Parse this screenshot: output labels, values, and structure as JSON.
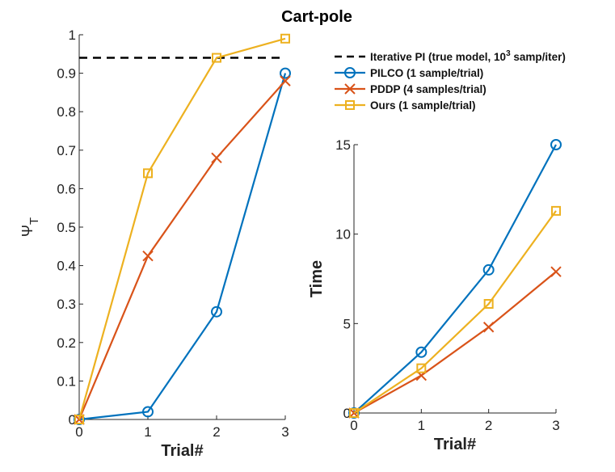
{
  "figure": {
    "title": "Cart-pole"
  },
  "chart_data": [
    {
      "type": "line",
      "xlabel": "Trial#",
      "ylabel": "Ψ",
      "ylabel_sub": "T",
      "x": [
        0,
        1,
        2,
        3
      ],
      "xlim": [
        0,
        3
      ],
      "ylim": [
        0,
        1
      ],
      "xticks": [
        "0",
        "1",
        "2",
        "3"
      ],
      "yticks": [
        "0",
        "0.1",
        "0.2",
        "0.3",
        "0.4",
        "0.5",
        "0.6",
        "0.7",
        "0.8",
        "0.9",
        "1"
      ],
      "reference_line": {
        "name": "Iterative PI (true model, 10",
        "name_sup": "3",
        "name_tail": " samp/iter)",
        "value": 0.94,
        "style": "dashed",
        "color": "#000000"
      },
      "series": [
        {
          "name": "PILCO (1 sample/trial)",
          "marker": "circle",
          "color": "#0072BD",
          "values": [
            0,
            0.02,
            0.28,
            0.9
          ]
        },
        {
          "name": "PDDP (4 samples/trial)",
          "marker": "x",
          "color": "#D95319",
          "values": [
            0,
            0.425,
            0.68,
            0.88
          ]
        },
        {
          "name": "Ours (1 sample/trial)",
          "marker": "square",
          "color": "#EDB120",
          "values": [
            0,
            0.64,
            0.94,
            0.99
          ]
        }
      ]
    },
    {
      "type": "line",
      "xlabel": "Trial#",
      "ylabel": "Time",
      "x": [
        0,
        1,
        2,
        3
      ],
      "xlim": [
        0,
        3
      ],
      "ylim": [
        0,
        15
      ],
      "xticks": [
        "0",
        "1",
        "2",
        "3"
      ],
      "yticks": [
        "0",
        "5",
        "10",
        "15"
      ],
      "series": [
        {
          "name": "PILCO (1 sample/trial)",
          "marker": "circle",
          "color": "#0072BD",
          "values": [
            0,
            3.4,
            8.0,
            15.0
          ]
        },
        {
          "name": "PDDP (4 samples/trial)",
          "marker": "x",
          "color": "#D95319",
          "values": [
            0,
            2.1,
            4.8,
            7.9
          ]
        },
        {
          "name": "Ours (1 sample/trial)",
          "marker": "square",
          "color": "#EDB120",
          "values": [
            0,
            2.5,
            6.1,
            11.3
          ]
        }
      ]
    }
  ],
  "legend": {
    "placement": "upper-right"
  }
}
